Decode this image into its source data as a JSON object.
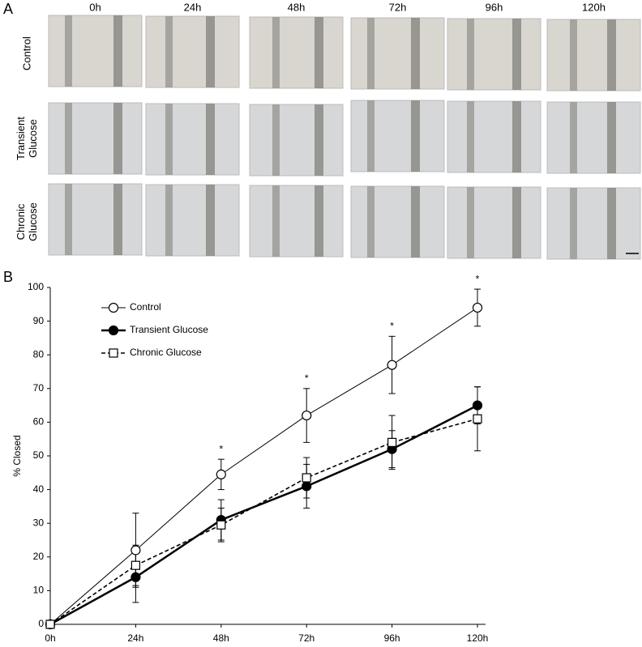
{
  "panel_a": {
    "label": "A",
    "columns": [
      "0h",
      "24h",
      "48h",
      "72h",
      "96h",
      "120h"
    ],
    "rows": [
      [
        "Control"
      ],
      [
        "Transient",
        "Glucose"
      ],
      [
        "Chronic",
        "Glucose"
      ]
    ]
  },
  "chart_data": {
    "type": "line",
    "label": "B",
    "ylabel": "% Closed",
    "categories": [
      "0h",
      "24h",
      "48h",
      "72h",
      "96h",
      "120h"
    ],
    "ylim": [
      0,
      100
    ],
    "yticks": [
      0,
      10,
      20,
      30,
      40,
      50,
      60,
      70,
      80,
      90,
      100
    ],
    "legend": "upper left",
    "series": [
      {
        "name": "Control",
        "color": "#000000",
        "marker": "circle-open",
        "line_style": "solid-thin",
        "values": [
          0,
          22,
          44.5,
          62,
          77,
          94
        ],
        "errors": [
          0,
          11,
          4.5,
          8,
          8.5,
          5.5
        ]
      },
      {
        "name": "Transient Glucose",
        "color": "#000000",
        "marker": "circle-filled",
        "line_style": "solid-thick",
        "values": [
          0,
          14,
          31,
          41,
          52,
          65
        ],
        "errors": [
          0,
          7.5,
          6,
          6.5,
          5.5,
          5.5
        ]
      },
      {
        "name": "Chronic Glucose",
        "color": "#000000",
        "marker": "square-open",
        "line_style": "dashed",
        "values": [
          0,
          17.5,
          29.5,
          43.5,
          54,
          61
        ],
        "errors": [
          0,
          6,
          5,
          6,
          8,
          9.5
        ]
      }
    ],
    "annotations": [
      {
        "text": "*",
        "x": "48h"
      },
      {
        "text": "*",
        "x": "72h"
      },
      {
        "text": "*",
        "x": "96h"
      },
      {
        "text": "*",
        "x": "120h"
      }
    ]
  }
}
